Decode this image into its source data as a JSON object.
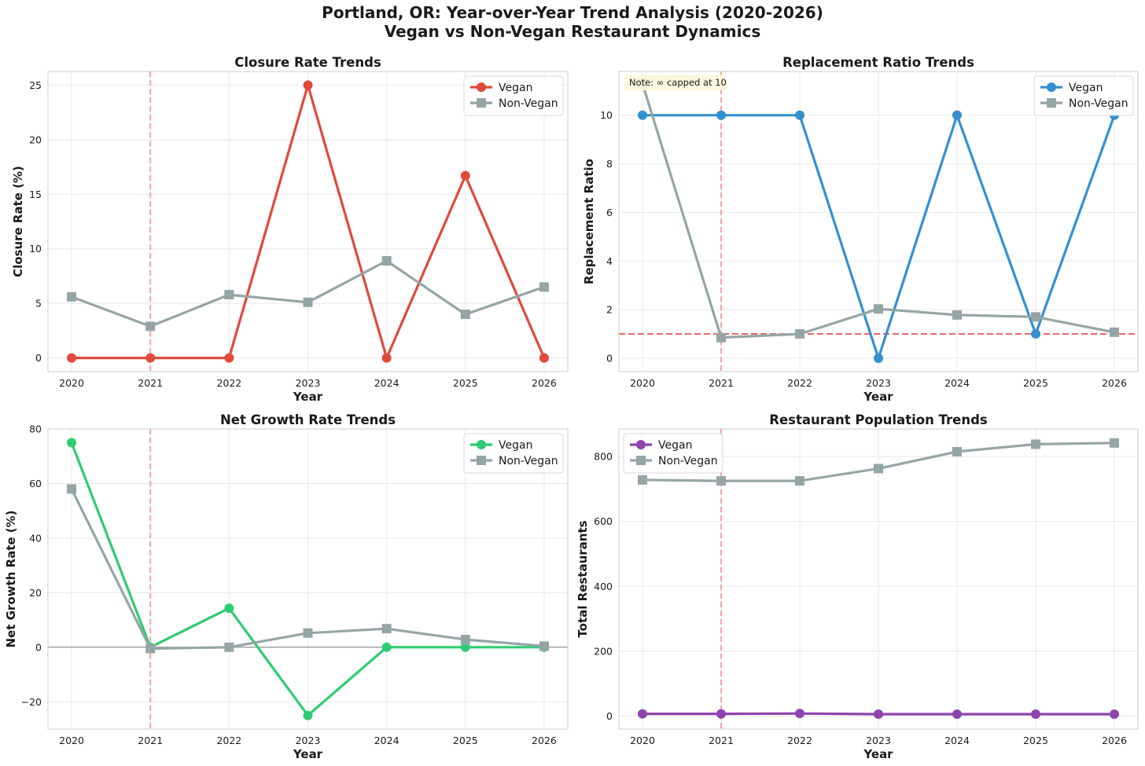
{
  "figure": {
    "title_line1": "Portland, OR: Year-over-Year Trend Analysis (2020-2026)",
    "title_line2": "Vegan vs Non-Vegan Restaurant Dynamics"
  },
  "colors": {
    "grid": "#e8e8e8",
    "axes_edge": "#cccccc",
    "marker_line": "#f4a3a3",
    "nonvegan": "#95a5a6"
  },
  "chart_data": [
    {
      "id": "closure",
      "type": "line",
      "title": "Closure Rate Trends",
      "xlabel": "Year",
      "ylabel": "Closure Rate (%)",
      "x": [
        2020,
        2021,
        2022,
        2023,
        2024,
        2025,
        2026
      ],
      "xticks": [
        "2020",
        "2021",
        "2022",
        "2023",
        "2024",
        "2025",
        "2026"
      ],
      "yticks": [
        0,
        5,
        10,
        15,
        20,
        25
      ],
      "ytick_labels": [
        "0",
        "5",
        "10",
        "15",
        "20",
        "25"
      ],
      "ylim": [
        -1.25,
        26.25
      ],
      "vline_x": 2021,
      "legend_position": "upper-right",
      "series": [
        {
          "name": "Vegan",
          "marker": "circle",
          "color": "#e04a3a",
          "values": [
            0,
            0,
            0,
            25,
            0,
            16.7,
            0
          ]
        },
        {
          "name": "Non-Vegan",
          "marker": "square",
          "color": "#95a5a6",
          "values": [
            5.6,
            2.9,
            5.8,
            5.1,
            8.9,
            4.0,
            6.5
          ]
        }
      ]
    },
    {
      "id": "replacement",
      "type": "line",
      "title": "Replacement Ratio Trends",
      "xlabel": "Year",
      "ylabel": "Replacement Ratio",
      "x": [
        2020,
        2021,
        2022,
        2023,
        2024,
        2025,
        2026
      ],
      "xticks": [
        "2020",
        "2021",
        "2022",
        "2023",
        "2024",
        "2025",
        "2026"
      ],
      "yticks": [
        0,
        2,
        4,
        6,
        8,
        10
      ],
      "ytick_labels": [
        "0",
        "2",
        "4",
        "6",
        "8",
        "10"
      ],
      "ylim": [
        -0.55,
        11.8
      ],
      "vline_x": 2021,
      "hline_y": 1,
      "note": "Note: ∞ capped at 10",
      "legend_position": "upper-right",
      "series": [
        {
          "name": "Vegan",
          "marker": "circle",
          "color": "#3590d0",
          "values": [
            10,
            10,
            10,
            0,
            10,
            1,
            10
          ]
        },
        {
          "name": "Non-Vegan",
          "marker": "square",
          "color": "#95a5a6",
          "values": [
            11.3,
            0.85,
            1.0,
            2.03,
            1.78,
            1.7,
            1.07
          ]
        }
      ]
    },
    {
      "id": "netgrowth",
      "type": "line",
      "title": "Net Growth Rate Trends",
      "xlabel": "Year",
      "ylabel": "Net Growth Rate (%)",
      "x": [
        2020,
        2021,
        2022,
        2023,
        2024,
        2025,
        2026
      ],
      "xticks": [
        "2020",
        "2021",
        "2022",
        "2023",
        "2024",
        "2025",
        "2026"
      ],
      "yticks": [
        -20,
        0,
        20,
        40,
        60,
        80
      ],
      "ytick_labels": [
        "−20",
        "0",
        "20",
        "40",
        "60",
        "80"
      ],
      "ylim": [
        -30,
        80
      ],
      "vline_x": 2021,
      "zero_line": true,
      "legend_position": "upper-right",
      "series": [
        {
          "name": "Vegan",
          "marker": "circle",
          "color": "#2ecc71",
          "values": [
            75,
            0,
            14.3,
            -25,
            0,
            0,
            0
          ]
        },
        {
          "name": "Non-Vegan",
          "marker": "square",
          "color": "#95a5a6",
          "values": [
            58,
            -0.5,
            0,
            5.2,
            6.8,
            2.8,
            0.4
          ]
        }
      ]
    },
    {
      "id": "population",
      "type": "line",
      "title": "Restaurant Population Trends",
      "xlabel": "Year",
      "ylabel": "Total Restaurants",
      "x": [
        2020,
        2021,
        2022,
        2023,
        2024,
        2025,
        2026
      ],
      "xticks": [
        "2020",
        "2021",
        "2022",
        "2023",
        "2024",
        "2025",
        "2026"
      ],
      "yticks": [
        0,
        200,
        400,
        600,
        800
      ],
      "ytick_labels": [
        "0",
        "200",
        "400",
        "600",
        "800"
      ],
      "ylim": [
        -40,
        885
      ],
      "vline_x": 2021,
      "legend_position": "upper-left",
      "series": [
        {
          "name": "Vegan",
          "marker": "circle",
          "color": "#8e44ad",
          "values": [
            7,
            7,
            8,
            6,
            6,
            6,
            6
          ]
        },
        {
          "name": "Non-Vegan",
          "marker": "square",
          "color": "#95a5a6",
          "values": [
            728,
            725,
            725,
            763,
            815,
            838,
            842
          ]
        }
      ]
    }
  ]
}
